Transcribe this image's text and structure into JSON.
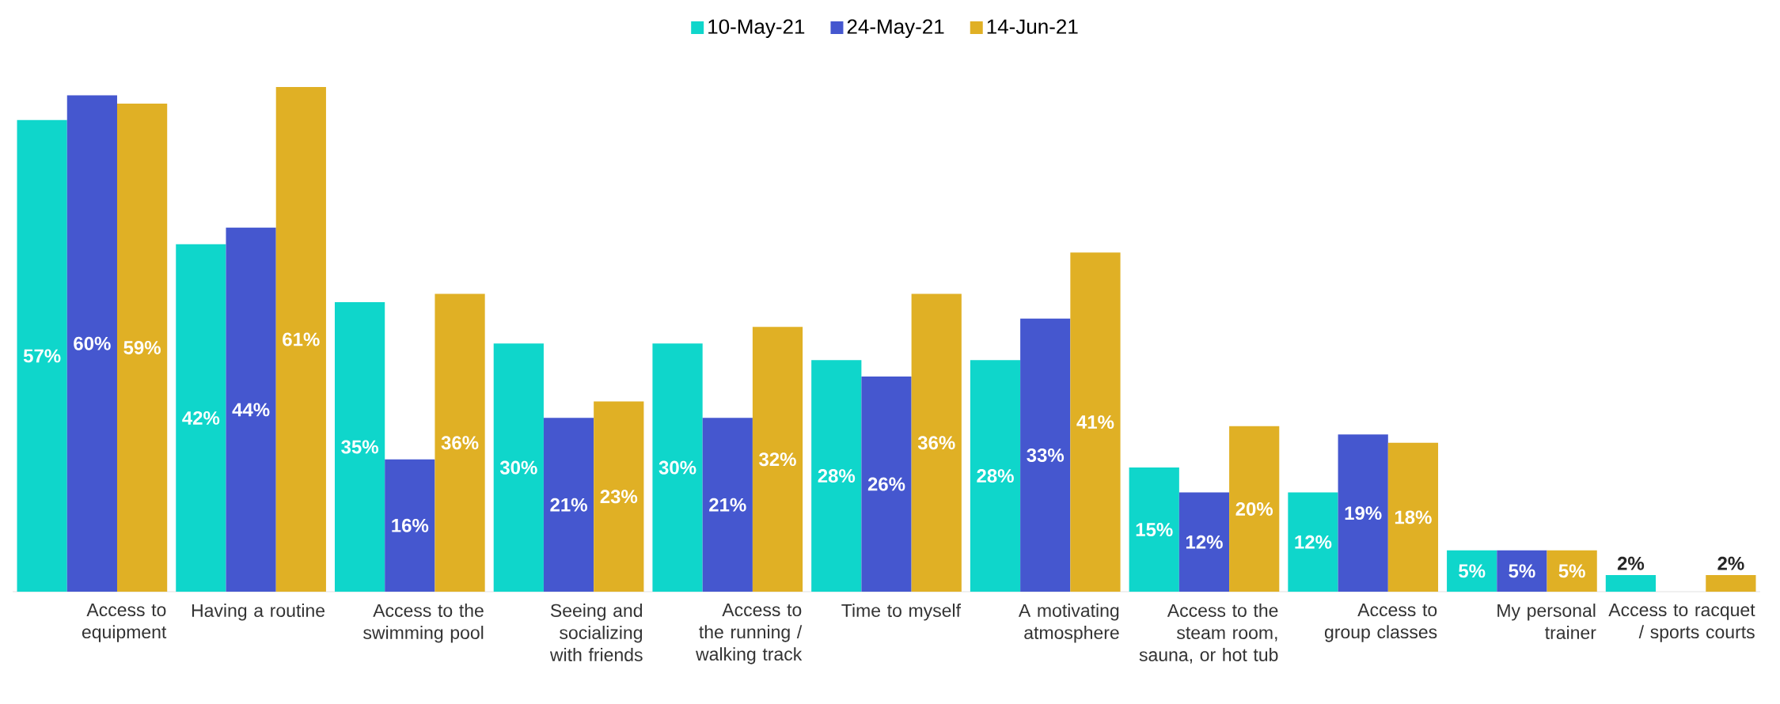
{
  "chart_data": {
    "type": "bar",
    "categories": [
      "Access to equipment",
      "Having a routine",
      "Access to the swimming pool",
      "Seeing and socializing with friends",
      "Access to the running / walking track",
      "Time to myself",
      "A motivating atmosphere",
      "Access to the steam room, sauna, or hot tub",
      "Access to group classes",
      "My personal trainer",
      "Access to racquet / sports courts"
    ],
    "series": [
      {
        "name": "10-May-21",
        "color": "#0fd6cb",
        "values": [
          57,
          42,
          35,
          30,
          30,
          28,
          28,
          15,
          12,
          5,
          2
        ],
        "value_labels": [
          "57%",
          "42%",
          "35%",
          "30%",
          "30%",
          "28%",
          "28%",
          "15%",
          "12%",
          "5%",
          "2%"
        ]
      },
      {
        "name": "24-May-21",
        "color": "#4557cf",
        "values": [
          60,
          44,
          16,
          21,
          21,
          26,
          33,
          12,
          19,
          5,
          null
        ],
        "value_labels": [
          "60%",
          "44%",
          "16%",
          "21%",
          "21%",
          "26%",
          "33%",
          "12%",
          "19%",
          "5%",
          null
        ]
      },
      {
        "name": "14-Jun-21",
        "color": "#e0b025",
        "values": [
          59,
          61,
          36,
          23,
          32,
          36,
          41,
          20,
          18,
          5,
          2
        ],
        "value_labels": [
          "59%",
          "61%",
          "36%",
          "23%",
          "32%",
          "36%",
          "41%",
          "20%",
          "18%",
          "5%",
          "2%"
        ]
      }
    ],
    "legend": "top"
  }
}
